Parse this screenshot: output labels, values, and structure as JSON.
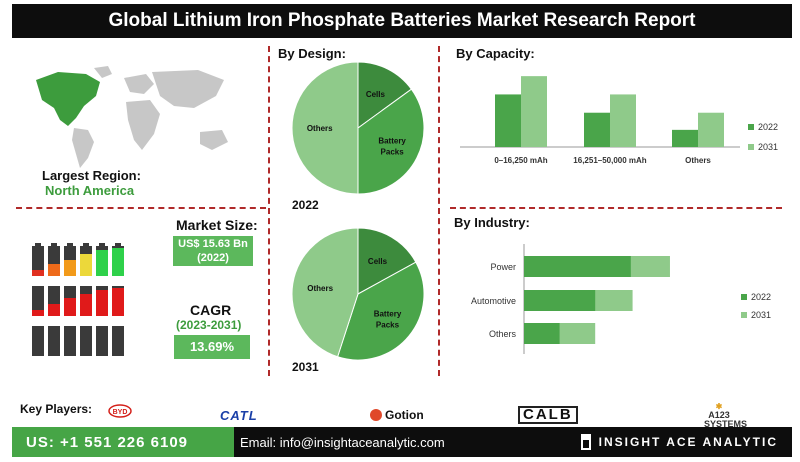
{
  "title": "Global Lithium Iron Phosphate Batteries Market Research Report",
  "region": {
    "label": "Largest Region:",
    "value": "North America"
  },
  "market_size": {
    "label": "Market Size:",
    "value": "US$ 15.63 Bn",
    "year": "(2022)"
  },
  "cagr": {
    "label": "CAGR",
    "period": "(2023-2031)",
    "value": "13.69%"
  },
  "key_players": {
    "label": "Key Players:",
    "logos": [
      "BYD",
      "CATL",
      "Gotion",
      "CALB",
      "A123 SYSTEMS"
    ]
  },
  "footer": {
    "phone": "US: +1 551 226 6109",
    "email": "Email: info@insightaceanalytic.com",
    "brand": "INSIGHT ACE ANALYTIC"
  },
  "colors": {
    "dark_green": "#3d8b3d",
    "mid_green": "#4aa54a",
    "light_green": "#8fca8a",
    "accent_red": "#b02a2a"
  },
  "chart_data": [
    {
      "type": "pie",
      "title": "By  Design:",
      "caption": "2022",
      "labels": [
        "Cells",
        "Battery Packs",
        "Others"
      ],
      "values": [
        15,
        35,
        50
      ]
    },
    {
      "type": "pie",
      "caption": "2031",
      "labels": [
        "Cells",
        "Battery Packs",
        "Others"
      ],
      "values": [
        17,
        38,
        45
      ]
    },
    {
      "type": "bar",
      "title": "By Capacity:",
      "categories": [
        "0–16,250 mAh",
        "16,251–50,000 mAh",
        "Others"
      ],
      "series": [
        {
          "name": "2022",
          "values": [
            46,
            30,
            15
          ]
        },
        {
          "name": "2031",
          "values": [
            62,
            46,
            30
          ]
        }
      ],
      "ylim": [
        0,
        70
      ],
      "legend": "right"
    },
    {
      "type": "bar",
      "orientation": "horizontal",
      "title": "By Industry:",
      "categories": [
        "Power",
        "Automotive",
        "Others"
      ],
      "series": [
        {
          "name": "2022",
          "values": [
            60,
            40,
            20
          ]
        },
        {
          "name": "2031",
          "values": [
            82,
            61,
            40
          ]
        }
      ],
      "xlim": [
        0,
        100
      ],
      "legend": "right"
    }
  ]
}
